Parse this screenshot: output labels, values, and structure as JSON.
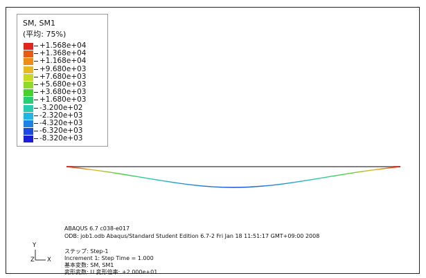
{
  "legend": {
    "title": "SM, SM1",
    "subtitle": "(平均: 75%)",
    "values": [
      "+1.568e+04",
      "+1.368e+04",
      "+1.168e+04",
      "+9.680e+03",
      "+7.680e+03",
      "+5.680e+03",
      "+3.680e+03",
      "+1.680e+03",
      "-3.200e+02",
      "-2.320e+03",
      "-4.320e+03",
      "-6.320e+03",
      "-8.320e+03"
    ],
    "colors": [
      "#e0261b",
      "#ea5a12",
      "#f08c14",
      "#e8b920",
      "#c9d821",
      "#8fdc28",
      "#45d22a",
      "#25d072",
      "#22cdb0",
      "#1fb6e6",
      "#1b82e8",
      "#1a4ae2",
      "#1a1ed8"
    ]
  },
  "info": {
    "line1": "ABAQUS 6.7 c038-e017",
    "line2": "ODB: job1.odb    Abaqus/Standard Student Edition 6.7-2    Fri Jan 18 11:51:17 GMT+09:00 2008",
    "line3": "ステップ: Step-1",
    "line4": "Increment      1: Step Time =      1.000",
    "line5": "基本変数: SM, SM1",
    "line6": "変形変数: U   変形倍率: +2.000e+01"
  },
  "triad": {
    "y_label": "Y",
    "z_label": "Z",
    "x_label": "X"
  }
}
